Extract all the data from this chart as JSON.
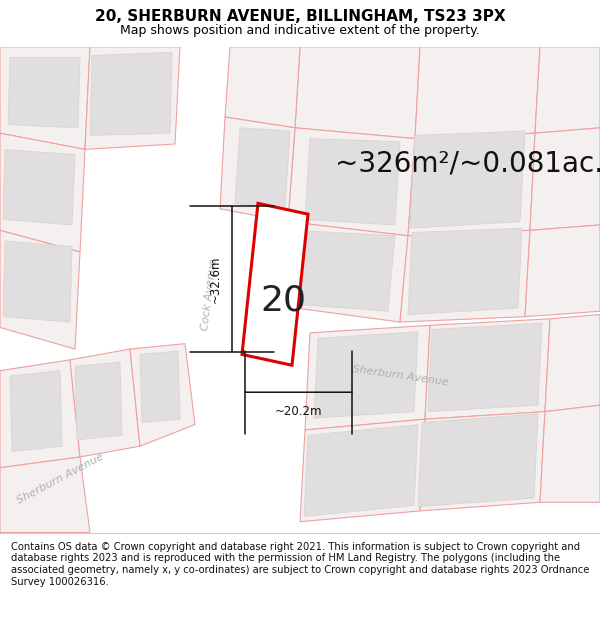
{
  "title": "20, SHERBURN AVENUE, BILLINGHAM, TS23 3PX",
  "subtitle": "Map shows position and indicative extent of the property.",
  "area_text": "~326m²/~0.081ac.",
  "property_number": "20",
  "dim_width": "~20.2m",
  "dim_height": "~32.6m",
  "footer": "Contains OS data © Crown copyright and database right 2021. This information is subject to Crown copyright and database rights 2023 and is reproduced with the permission of HM Land Registry. The polygons (including the associated geometry, namely x, y co-ordinates) are subject to Crown copyright and database rights 2023 Ordnance Survey 100026316.",
  "bg_color": "#ffffff",
  "map_bg": "#ffffff",
  "parcel_fill": "#f5f0f0",
  "parcel_edge": "#f0a0a0",
  "building_fill": "#e0dede",
  "building_edge": "#d8d4d4",
  "road_fill": "#ffffff",
  "plot_outline_color": "#dd0000",
  "plot_fill": "#ffffff",
  "label_color": "#b0b0b0",
  "dim_color": "#111111",
  "footer_bg": "#ede8d8",
  "title_fontsize": 11,
  "subtitle_fontsize": 9,
  "area_fontsize": 20,
  "number_fontsize": 26,
  "dim_fontsize": 8.5,
  "street_fontsize": 8,
  "footer_fontsize": 7.2
}
